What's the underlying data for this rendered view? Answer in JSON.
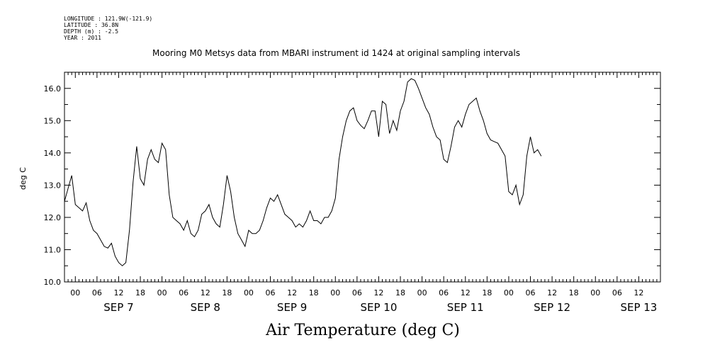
{
  "header": {
    "meta_lines": [
      "LONGITUDE : 121.9W(-121.9)",
      "LATITUDE : 36.8N",
      "DEPTH (m) : -2.5",
      "YEAR : 2011"
    ],
    "title": "Mooring M0 Metsys data from MBARI instrument id 1424 at original sampling intervals"
  },
  "chart_data": {
    "type": "line",
    "title": "Mooring M0 Metsys data from MBARI instrument id 1424 at original sampling intervals",
    "xlabel": "Air Temperature (deg C)",
    "ylabel": "deg C",
    "ylim": [
      10.0,
      16.5
    ],
    "xlim_hours": [
      -3,
      162
    ],
    "x_start": "SEP 6 21:00",
    "y_ticks": [
      "10.0",
      "11.0",
      "12.0",
      "13.0",
      "14.0",
      "15.0",
      "16.0"
    ],
    "y_tick_values": [
      10,
      11,
      12,
      13,
      14,
      15,
      16
    ],
    "hour_ticks": [
      "00",
      "06",
      "12",
      "18"
    ],
    "day_labels": [
      "SEP 7",
      "SEP 8",
      "SEP 9",
      "SEP 10",
      "SEP 11",
      "SEP 12",
      "SEP 13"
    ],
    "grid": false,
    "series": [
      {
        "x_start": "SEP 6 21:00",
        "x_step_hours": 1,
        "values": [
          12.5,
          12.9,
          13.3,
          12.4,
          12.3,
          12.2,
          12.45,
          11.9,
          11.6,
          11.5,
          11.3,
          11.1,
          11.05,
          11.2,
          10.8,
          10.6,
          10.5,
          10.6,
          11.6,
          13.1,
          14.2,
          13.2,
          13.0,
          13.8,
          14.1,
          13.8,
          13.7,
          14.3,
          14.1,
          12.7,
          12.0,
          11.9,
          11.8,
          11.6,
          11.9,
          11.5,
          11.4,
          11.6,
          12.1,
          12.2,
          12.4,
          12.0,
          11.8,
          11.7,
          12.4,
          13.3,
          12.8,
          12.0,
          11.5,
          11.3,
          11.1,
          11.6,
          11.5,
          11.5,
          11.6,
          11.9,
          12.3,
          12.6,
          12.5,
          12.7,
          12.4,
          12.1,
          12.0,
          11.9,
          11.7,
          11.8,
          11.7,
          11.9,
          12.2,
          11.9,
          11.9,
          11.8,
          12.0,
          12.0,
          12.2,
          12.6,
          13.8,
          14.5,
          15.0,
          15.3,
          15.4,
          15.0,
          14.85,
          14.75,
          15.0,
          15.3,
          15.3,
          14.5,
          15.6,
          15.5,
          14.6,
          15.0,
          14.7,
          15.3,
          15.6,
          16.2,
          16.3,
          16.25,
          16.0,
          15.7,
          15.4,
          15.2,
          14.8,
          14.5,
          14.4,
          13.8,
          13.7,
          14.2,
          14.8,
          15.0,
          14.8,
          15.2,
          15.5,
          15.6,
          15.7,
          15.3,
          15.0,
          14.6,
          14.4,
          14.35,
          14.3,
          14.1,
          13.9,
          12.8,
          12.7,
          13.0,
          12.4,
          12.7,
          13.9,
          14.5,
          14.0,
          14.1,
          13.9
        ]
      }
    ]
  }
}
